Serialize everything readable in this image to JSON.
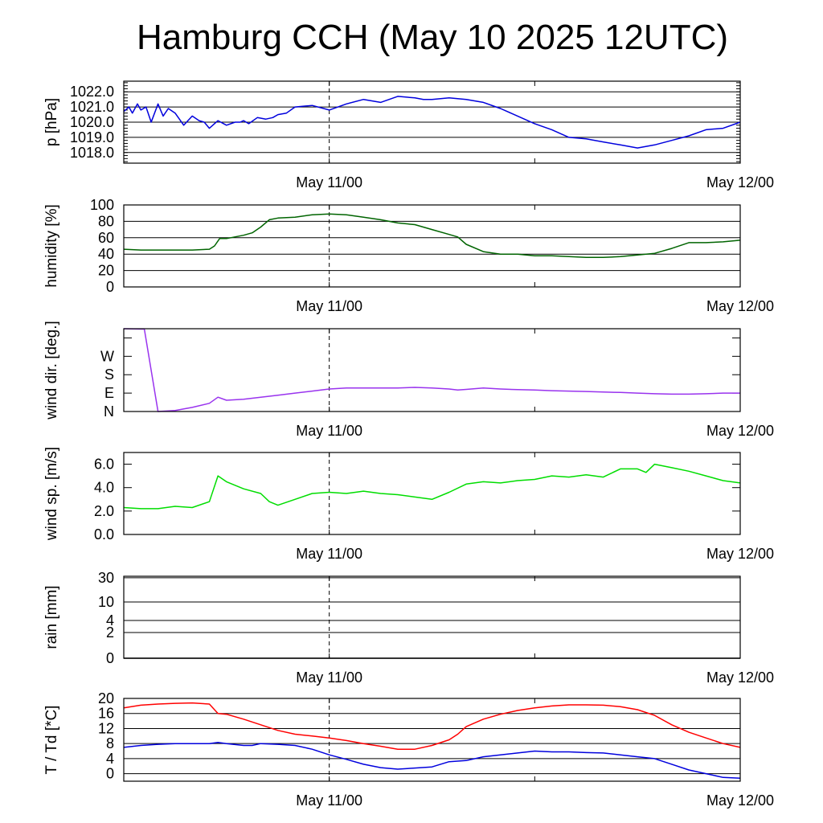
{
  "title": "Hamburg CCH (May 10 2025 12UTC)",
  "x_axis": {
    "start": "2025-05-10 12:00 UTC",
    "end": "2025-05-12 00:00 UTC",
    "tick_labels": [
      "May 11/00",
      "May 12/00"
    ],
    "marker": "May 11/00 (dashed)"
  },
  "chart_data": [
    {
      "type": "line",
      "ylabel": "p [hPa]",
      "ylim": [
        1017.3,
        1022.7
      ],
      "yticks": [
        1018.0,
        1019.0,
        1020.0,
        1021.0,
        1022.0
      ],
      "ytick_labels": [
        "1018.0",
        "1019.0",
        "1020.0",
        "1021.0",
        "1022.0"
      ],
      "grid": true,
      "color": "#0000dd",
      "x_hours": [
        0,
        0.3,
        0.5,
        0.8,
        1,
        1.3,
        1.6,
        2,
        2.3,
        2.6,
        3,
        3.5,
        4,
        4.4,
        4.7,
        5,
        5.5,
        6,
        6.5,
        6.8,
        7,
        7.3,
        7.8,
        8.3,
        8.7,
        9,
        9.5,
        10,
        11,
        12,
        13,
        14,
        15,
        16,
        17,
        17.5,
        18,
        19,
        20,
        21,
        22,
        23,
        24,
        25,
        26,
        27,
        28,
        29,
        30,
        31,
        32,
        33,
        34,
        35,
        36
      ],
      "values": [
        1020.7,
        1021.0,
        1020.6,
        1021.2,
        1020.8,
        1021.0,
        1020.0,
        1021.2,
        1020.4,
        1020.9,
        1020.6,
        1019.8,
        1020.4,
        1020.1,
        1020.0,
        1019.6,
        1020.1,
        1019.8,
        1020.0,
        1020.0,
        1020.1,
        1019.9,
        1020.3,
        1020.2,
        1020.3,
        1020.5,
        1020.6,
        1021.0,
        1021.1,
        1020.8,
        1021.2,
        1021.5,
        1021.3,
        1021.7,
        1021.6,
        1021.5,
        1021.5,
        1021.6,
        1021.5,
        1021.3,
        1020.9,
        1020.4,
        1019.9,
        1019.5,
        1019.0,
        1018.9,
        1018.7,
        1018.5,
        1018.3,
        1018.5,
        1018.8,
        1019.1,
        1019.5,
        1019.6,
        1020.0
      ]
    },
    {
      "type": "line",
      "ylabel": "humidity [%]",
      "ylim": [
        0,
        100
      ],
      "yticks": [
        0,
        20,
        40,
        60,
        80,
        100
      ],
      "ytick_labels": [
        "0",
        "20",
        "40",
        "60",
        "80",
        "100"
      ],
      "grid": true,
      "color": "#006400",
      "x_hours": [
        0,
        1,
        2,
        3,
        4,
        5,
        5.3,
        5.6,
        6,
        7,
        7.5,
        8,
        8.5,
        9,
        10,
        11,
        12,
        13,
        14,
        15,
        16,
        17,
        18,
        19,
        19.5,
        20,
        21,
        22,
        23,
        24,
        25,
        26,
        27,
        28,
        29,
        30,
        31,
        32,
        33,
        34,
        35,
        36
      ],
      "values": [
        46,
        45,
        45,
        45,
        45,
        46,
        50,
        59,
        59,
        63,
        66,
        73,
        82,
        84,
        85,
        88,
        89,
        88,
        85,
        82,
        78,
        76,
        70,
        64,
        61,
        52,
        43,
        40,
        40,
        38,
        38,
        37,
        36,
        36,
        37,
        39,
        41,
        47,
        54,
        54,
        55,
        57
      ]
    },
    {
      "type": "line",
      "ylabel": "wind dir. [deg.]",
      "ylim": [
        0,
        405
      ],
      "yticks": [
        0,
        90,
        180,
        270,
        360
      ],
      "ytick_labels": [
        "N",
        "E",
        "S",
        "W",
        ""
      ],
      "grid": false,
      "color": "#9933ee",
      "x_hours": [
        0,
        1.2,
        2,
        3,
        4,
        5,
        5.5,
        6,
        7,
        8,
        9,
        10,
        11,
        12,
        13,
        14,
        15,
        16,
        17,
        18,
        19,
        19.5,
        20,
        21,
        22,
        23,
        24,
        25,
        26,
        27,
        28,
        29,
        30,
        31,
        32,
        33,
        34,
        35,
        36
      ],
      "values": [
        405,
        403,
        0,
        5,
        20,
        40,
        70,
        55,
        60,
        70,
        80,
        90,
        100,
        110,
        115,
        115,
        115,
        115,
        118,
        115,
        110,
        105,
        108,
        115,
        110,
        107,
        105,
        102,
        100,
        98,
        95,
        93,
        90,
        87,
        85,
        85,
        87,
        90,
        90
      ]
    },
    {
      "type": "line",
      "ylabel": "wind sp. [m/s]",
      "ylim": [
        0,
        7
      ],
      "yticks": [
        0,
        2,
        4,
        6
      ],
      "ytick_labels": [
        "0.0",
        "2.0",
        "4.0",
        "6.0"
      ],
      "grid": false,
      "color": "#00dd00",
      "x_hours": [
        0,
        1,
        2,
        3,
        4,
        5,
        5.5,
        6,
        7,
        8,
        8.5,
        9,
        10,
        11,
        12,
        13,
        14,
        15,
        16,
        17,
        18,
        19,
        20,
        21,
        22,
        23,
        24,
        25,
        26,
        27,
        28,
        29,
        30,
        30.5,
        31,
        32,
        33,
        34,
        35,
        36
      ],
      "values": [
        2.3,
        2.2,
        2.2,
        2.4,
        2.3,
        2.8,
        5.0,
        4.5,
        3.9,
        3.5,
        2.8,
        2.5,
        3.0,
        3.5,
        3.6,
        3.5,
        3.7,
        3.5,
        3.4,
        3.2,
        3.0,
        3.6,
        4.3,
        4.5,
        4.4,
        4.6,
        4.7,
        5.0,
        4.9,
        5.1,
        4.9,
        5.6,
        5.6,
        5.3,
        6.0,
        5.7,
        5.4,
        5.0,
        4.6,
        4.4
      ]
    },
    {
      "type": "line",
      "ylabel": "rain [mm]",
      "ylim": [
        0,
        32
      ],
      "yticks": [
        0,
        2,
        4,
        10,
        30
      ],
      "ytick_labels": [
        "0",
        "2",
        "4",
        "10",
        "30"
      ],
      "grid": true,
      "color": "#000000",
      "x_hours": [
        0,
        36
      ],
      "values": [
        0,
        0
      ]
    },
    {
      "type": "line",
      "ylabel": "T / Td [*C]",
      "ylim": [
        -2,
        20
      ],
      "yticks": [
        0,
        4,
        8,
        12,
        16,
        20
      ],
      "ytick_labels": [
        "0",
        "4",
        "8",
        "12",
        "16",
        "20"
      ],
      "grid": true,
      "series": [
        {
          "color": "#ff0000",
          "x_hours": [
            0,
            1,
            2,
            3,
            4,
            5,
            5.5,
            6,
            7,
            8,
            9,
            10,
            11,
            12,
            13,
            14,
            15,
            16,
            17,
            18,
            19,
            19.5,
            20,
            21,
            22,
            23,
            24,
            25,
            26,
            27,
            28,
            29,
            30,
            31,
            32,
            33,
            34,
            35,
            36
          ],
          "values": [
            17.5,
            18.2,
            18.5,
            18.7,
            18.8,
            18.5,
            16.0,
            15.8,
            14.5,
            13,
            11.5,
            10.5,
            10.0,
            9.5,
            8.8,
            8.0,
            7.3,
            6.5,
            6.5,
            7.5,
            9.0,
            10.5,
            12.5,
            14.5,
            15.8,
            16.8,
            17.5,
            18.0,
            18.3,
            18.3,
            18.2,
            17.8,
            17.0,
            15.5,
            13.0,
            11.0,
            9.5,
            8.0,
            7.0
          ]
        },
        {
          "color": "#0000dd",
          "x_hours": [
            0,
            1,
            2,
            3,
            4,
            5,
            5.5,
            6,
            7,
            7.5,
            8,
            9,
            10,
            11,
            12,
            13,
            14,
            15,
            16,
            17,
            18,
            19,
            20,
            21,
            22,
            23,
            24,
            25,
            26,
            27,
            28,
            29,
            30,
            31,
            32,
            33,
            34,
            35,
            36
          ],
          "values": [
            7.0,
            7.5,
            7.8,
            8.0,
            8.0,
            8.0,
            8.3,
            8.0,
            7.5,
            7.5,
            8.0,
            7.8,
            7.5,
            6.5,
            5.0,
            3.8,
            2.5,
            1.6,
            1.2,
            1.5,
            1.8,
            3.2,
            3.5,
            4.5,
            5.0,
            5.5,
            6.0,
            5.8,
            5.8,
            5.6,
            5.5,
            5.0,
            4.5,
            4.0,
            2.5,
            1.0,
            0,
            -1.0,
            -1.2
          ]
        }
      ]
    }
  ]
}
